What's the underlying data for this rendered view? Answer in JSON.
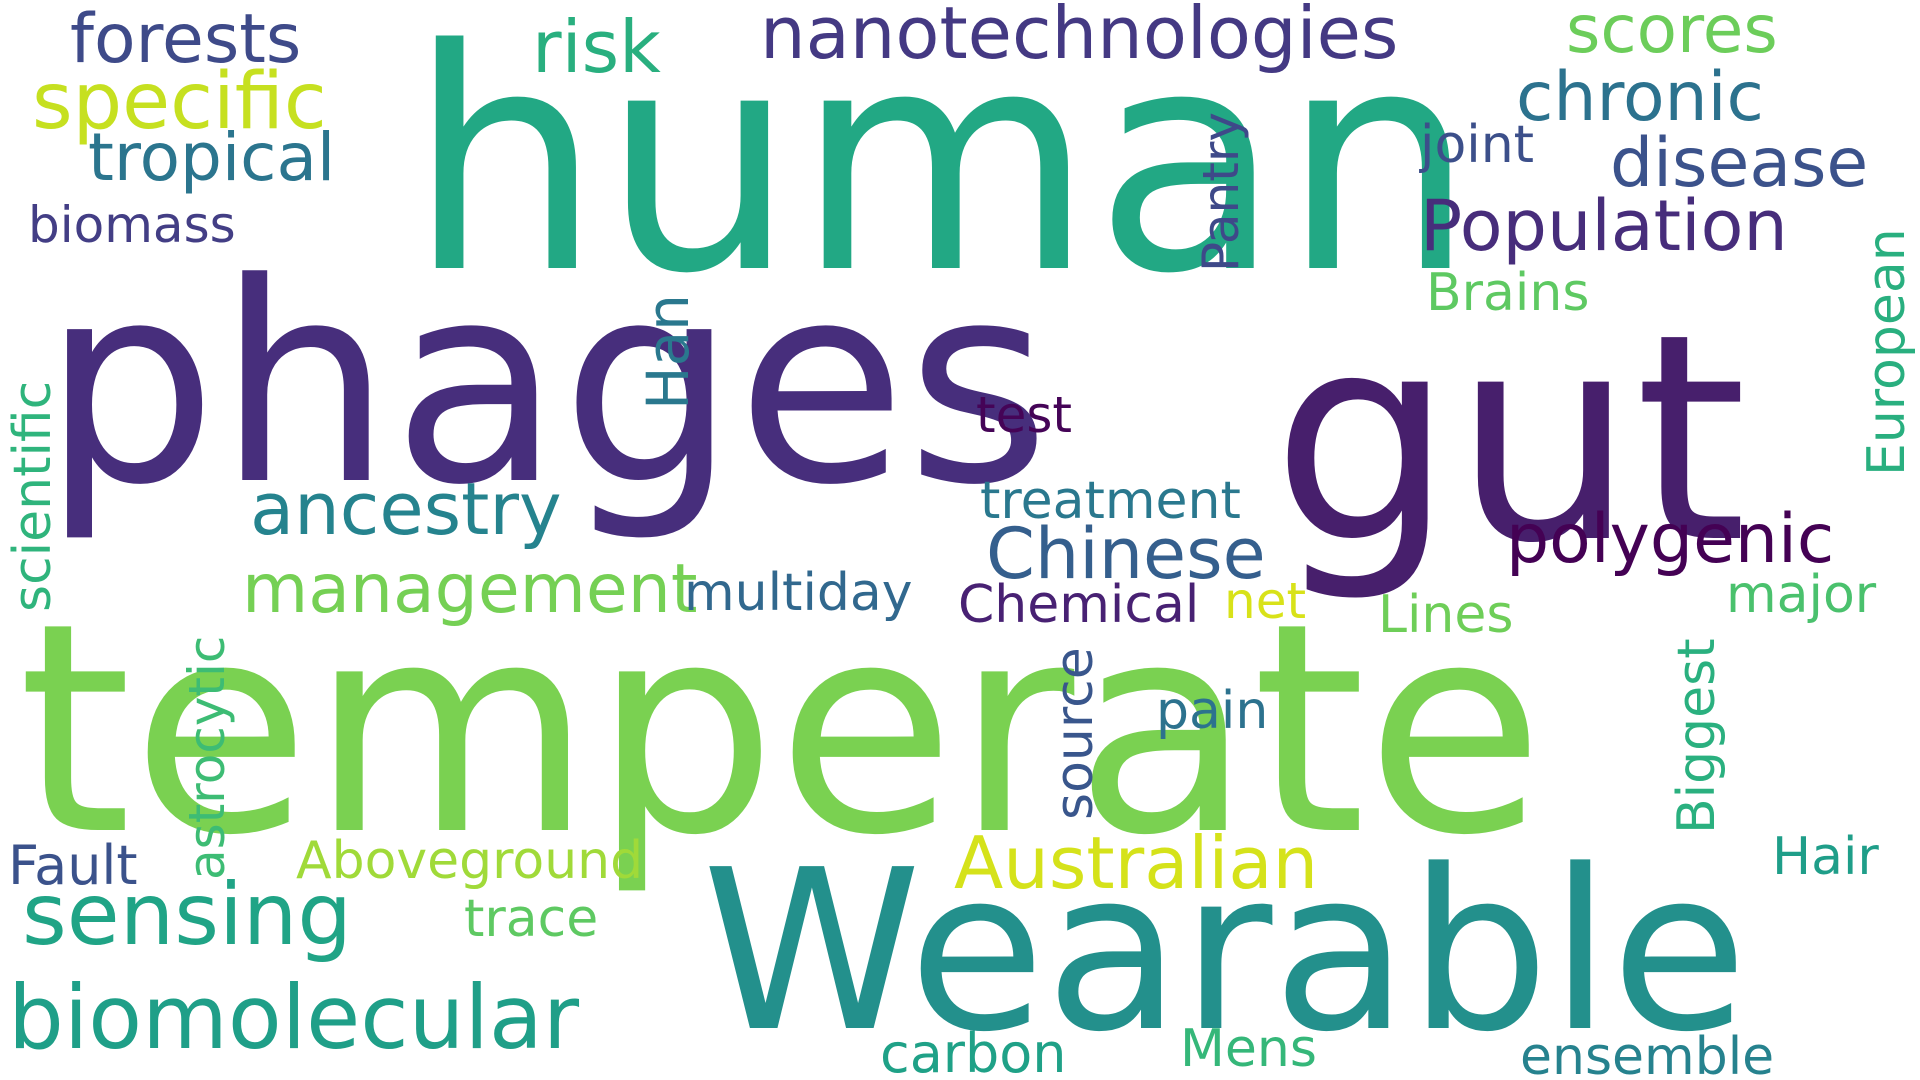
{
  "word_cloud": {
    "words": [
      {
        "text": "human",
        "color": "#22a884"
      },
      {
        "text": "phages",
        "color": "#472e7c"
      },
      {
        "text": "gut",
        "color": "#471f6c"
      },
      {
        "text": "temperate",
        "color": "#7ad151"
      },
      {
        "text": "Wearable",
        "color": "#23908c"
      },
      {
        "text": "nanotechnologies",
        "color": "#443983"
      },
      {
        "text": "forests",
        "color": "#3e4a89"
      },
      {
        "text": "risk",
        "color": "#29af7f"
      },
      {
        "text": "scores",
        "color": "#6ccd5a"
      },
      {
        "text": "specific",
        "color": "#c6e020"
      },
      {
        "text": "chronic",
        "color": "#2c728e"
      },
      {
        "text": "tropical",
        "color": "#2b758e"
      },
      {
        "text": "joint",
        "color": "#3c4f8a"
      },
      {
        "text": "disease",
        "color": "#3b528b"
      },
      {
        "text": "biomass",
        "color": "#433e85"
      },
      {
        "text": "Pantry",
        "color": "#3e4989"
      },
      {
        "text": "Population",
        "color": "#472d7b"
      },
      {
        "text": "Brains",
        "color": "#5ec962"
      },
      {
        "text": "European",
        "color": "#29af7f"
      },
      {
        "text": "scientific",
        "color": "#2fb47c"
      },
      {
        "text": "Han",
        "color": "#2a788e"
      },
      {
        "text": "test",
        "color": "#450457"
      },
      {
        "text": "ancestry",
        "color": "#25838e"
      },
      {
        "text": "treatment",
        "color": "#2a788e"
      },
      {
        "text": "polygenic",
        "color": "#440154"
      },
      {
        "text": "Chinese",
        "color": "#355f8d"
      },
      {
        "text": "management",
        "color": "#75d054"
      },
      {
        "text": "multiday",
        "color": "#31688e"
      },
      {
        "text": "astrocytic",
        "color": "#3dbc74"
      },
      {
        "text": "Chemical",
        "color": "#482173"
      },
      {
        "text": "net",
        "color": "#d8e219"
      },
      {
        "text": "Lines",
        "color": "#6ece58"
      },
      {
        "text": "major",
        "color": "#4ac16d"
      },
      {
        "text": "source",
        "color": "#39568c"
      },
      {
        "text": "Biggest",
        "color": "#2ab07f"
      },
      {
        "text": "pain",
        "color": "#2c728e"
      },
      {
        "text": "Fault",
        "color": "#3b528b"
      },
      {
        "text": "Aboveground",
        "color": "#a0da39"
      },
      {
        "text": "Australian",
        "color": "#d5e21a"
      },
      {
        "text": "Hair",
        "color": "#1f9e89"
      },
      {
        "text": "sensing",
        "color": "#20a486"
      },
      {
        "text": "trace",
        "color": "#5ec962"
      },
      {
        "text": "biomolecular",
        "color": "#1f9f88"
      },
      {
        "text": "carbon",
        "color": "#1fa187"
      },
      {
        "text": "Mens",
        "color": "#35b779"
      },
      {
        "text": "ensemble",
        "color": "#26828e"
      }
    ]
  }
}
